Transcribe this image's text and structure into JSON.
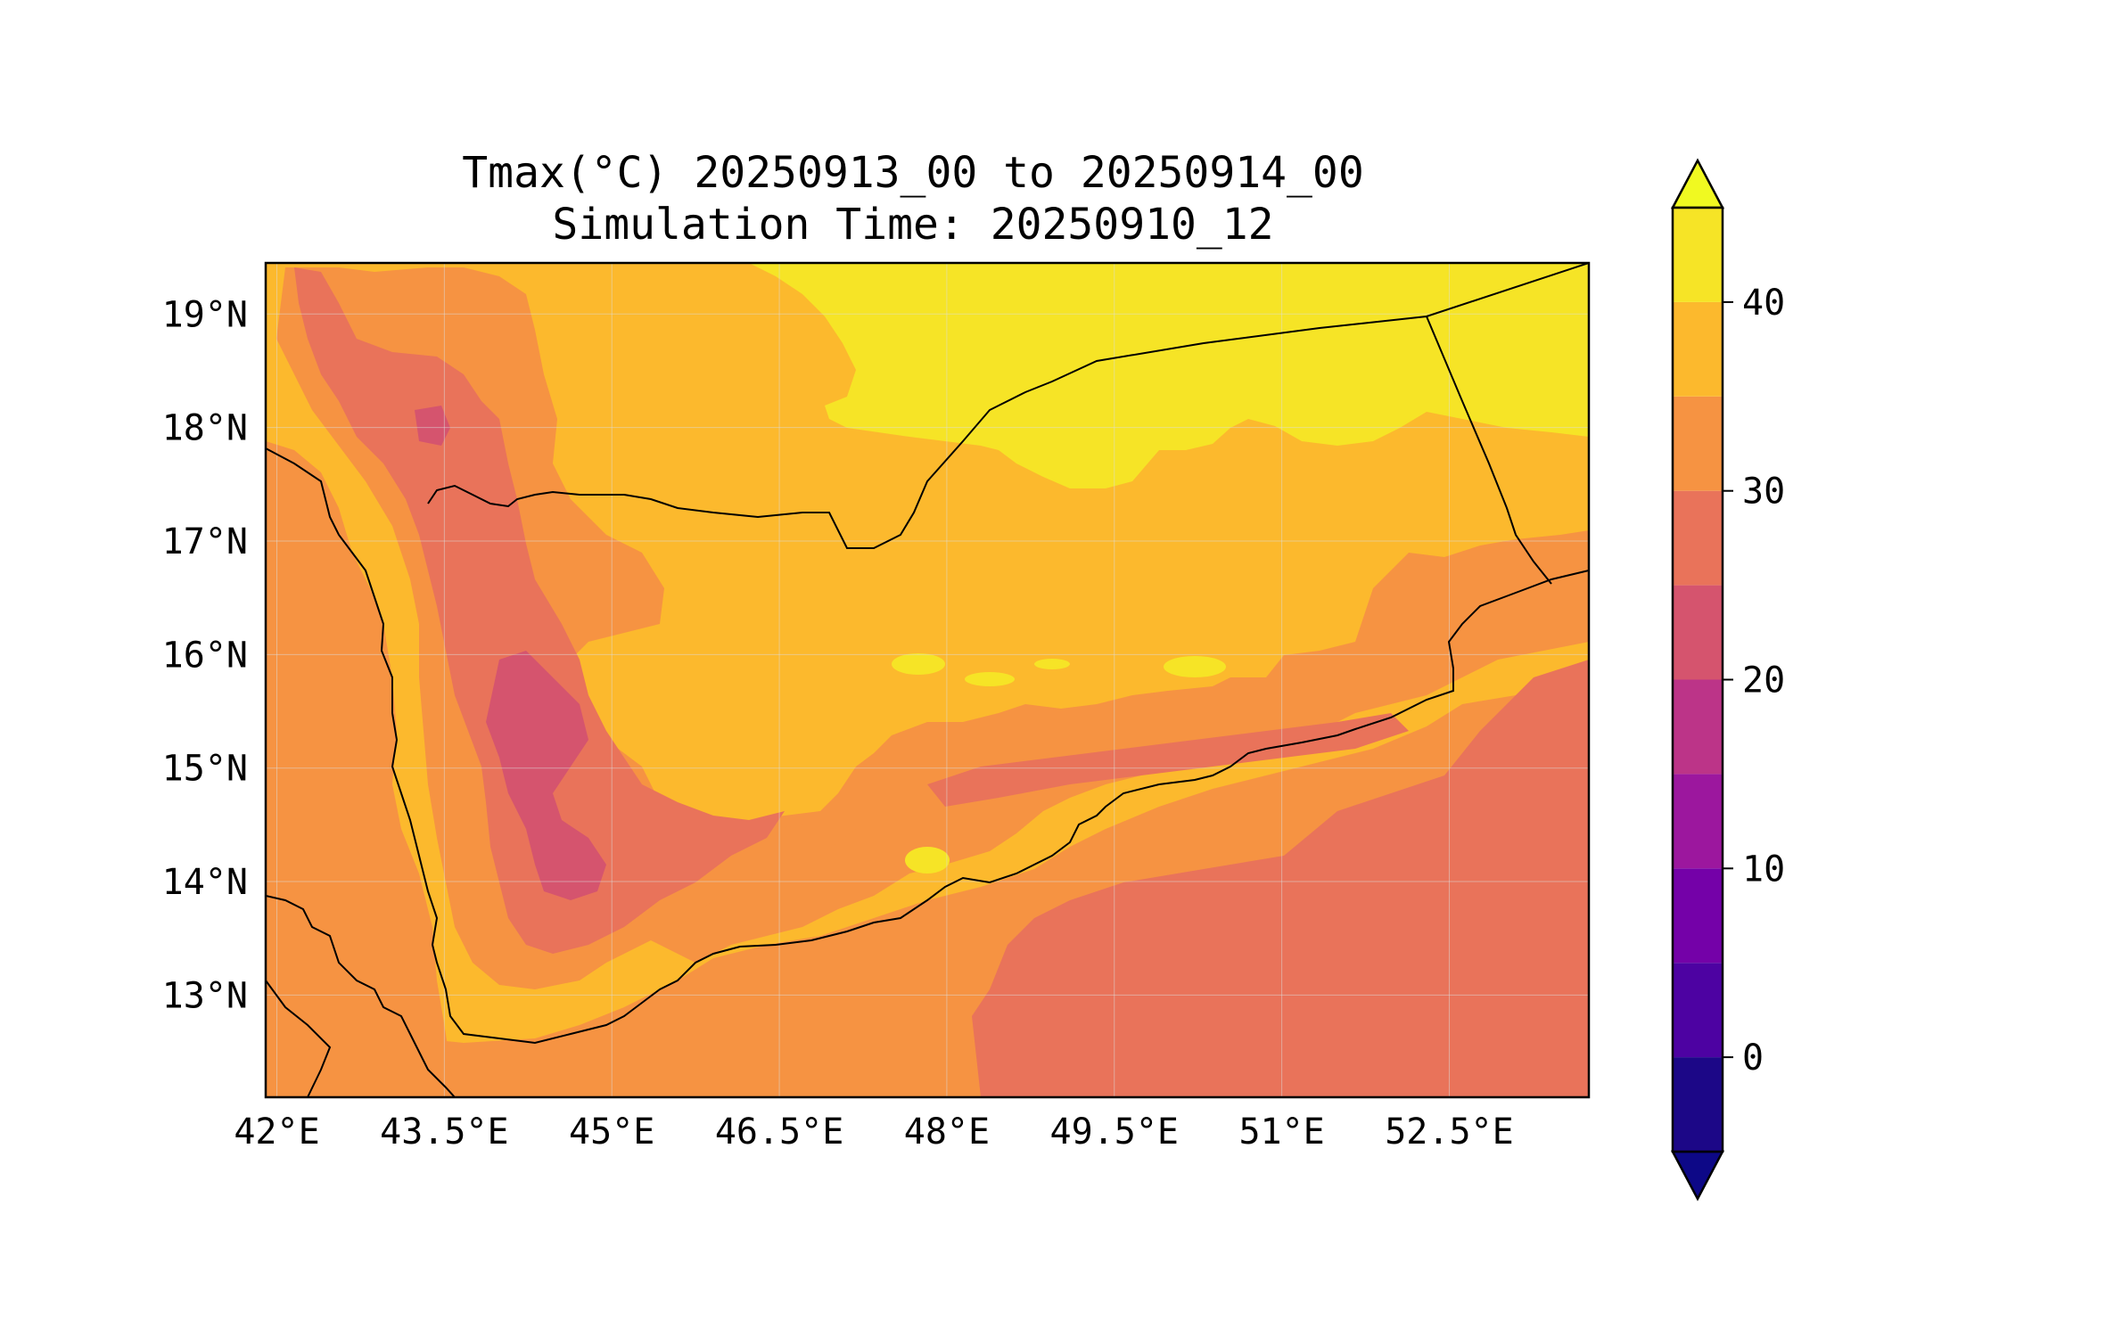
{
  "title": {
    "line1": "Tmax(°C) 20250913_00 to 20250914_00",
    "line2": "Simulation Time: 20250910_12"
  },
  "map": {
    "lon_range": [
      41.9,
      53.75
    ],
    "lat_range": [
      12.1,
      19.45
    ],
    "x_ticks": [
      {
        "value": 42.0,
        "label": "42°E"
      },
      {
        "value": 43.5,
        "label": "43.5°E"
      },
      {
        "value": 45.0,
        "label": "45°E"
      },
      {
        "value": 46.5,
        "label": "46.5°E"
      },
      {
        "value": 48.0,
        "label": "48°E"
      },
      {
        "value": 49.5,
        "label": "49.5°E"
      },
      {
        "value": 51.0,
        "label": "51°E"
      },
      {
        "value": 52.5,
        "label": "52.5°E"
      }
    ],
    "y_ticks": [
      {
        "value": 19,
        "label": "19°N"
      },
      {
        "value": 18,
        "label": "18°N"
      },
      {
        "value": 17,
        "label": "17°N"
      },
      {
        "value": 16,
        "label": "16°N"
      },
      {
        "value": 15,
        "label": "15°N"
      },
      {
        "value": 14,
        "label": "14°N"
      },
      {
        "value": 13,
        "label": "13°N"
      }
    ],
    "grid": true
  },
  "colorbar": {
    "range": [
      -5,
      45
    ],
    "extend": "both",
    "ticks": [
      {
        "value": 0,
        "label": "0"
      },
      {
        "value": 10,
        "label": "10"
      },
      {
        "value": 20,
        "label": "20"
      },
      {
        "value": 30,
        "label": "30"
      },
      {
        "value": 40,
        "label": "40"
      }
    ],
    "levels": [
      {
        "from": -5,
        "to": 0,
        "color": "#1c0787"
      },
      {
        "from": 0,
        "to": 5,
        "color": "#4d02a2"
      },
      {
        "from": 5,
        "to": 10,
        "color": "#7401a8"
      },
      {
        "from": 10,
        "to": 15,
        "color": "#9c179e"
      },
      {
        "from": 15,
        "to": 20,
        "color": "#bc3488"
      },
      {
        "from": 20,
        "to": 25,
        "color": "#d5546e"
      },
      {
        "from": 25,
        "to": 30,
        "color": "#e9735a"
      },
      {
        "from": 30,
        "to": 35,
        "color": "#f69342"
      },
      {
        "from": 35,
        "to": 40,
        "color": "#fcb92d"
      },
      {
        "from": 40,
        "to": 45,
        "color": "#f6e426"
      }
    ],
    "under_color": "#0d0887",
    "over_color": "#f0f921"
  },
  "chart_data": {
    "type": "heatmap",
    "title": "Tmax(°C) 20250913_00 to 20250914_00\nSimulation Time: 20250910_12",
    "units": "°C",
    "xlim": [
      41.9,
      53.75
    ],
    "ylim": [
      12.1,
      19.45
    ],
    "color_range": [
      -5,
      45
    ]
  }
}
